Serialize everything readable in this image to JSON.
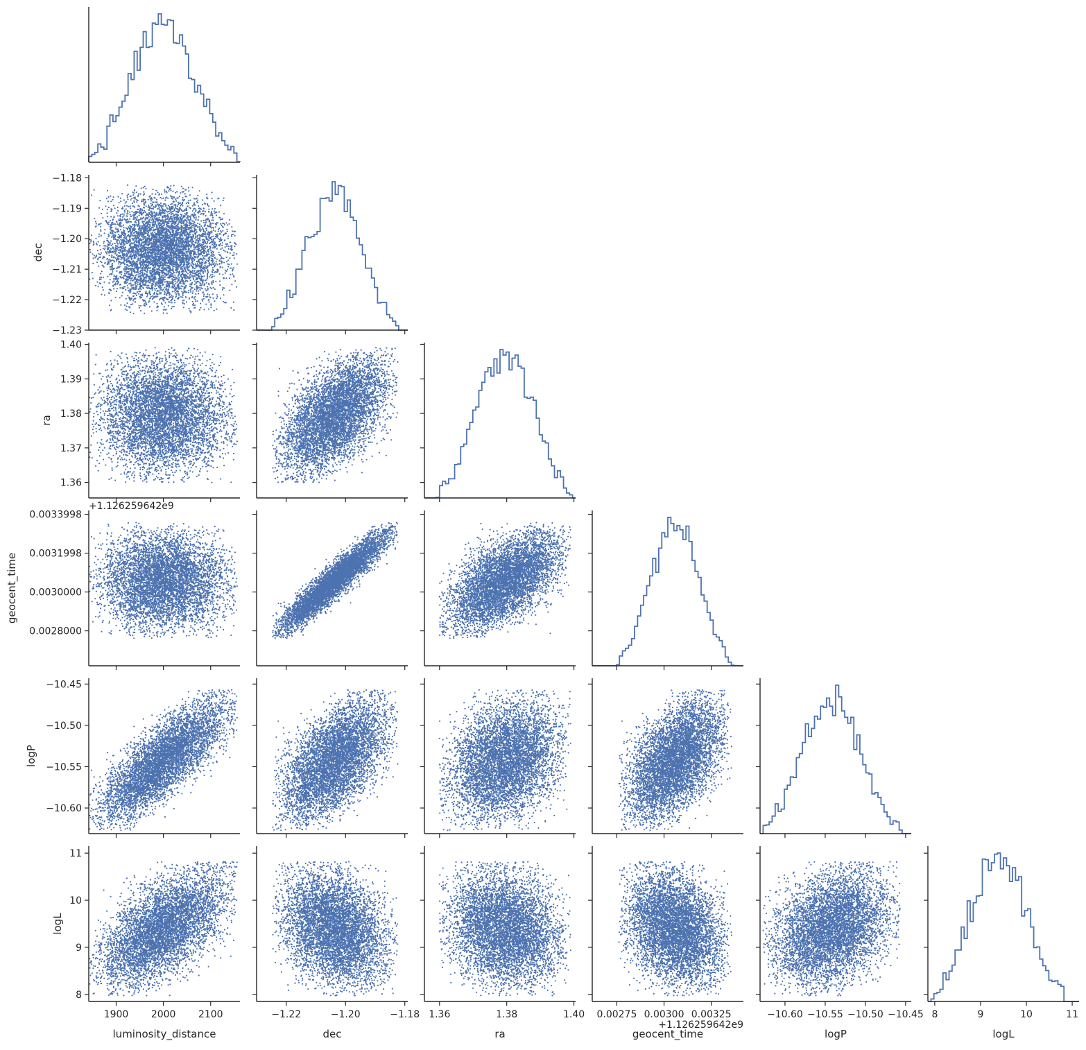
{
  "chart_data": {
    "type": "scatter",
    "kind": "pairplot-corner",
    "colors": {
      "marker": "#4c72b0",
      "axis": "#262626",
      "background": "#ffffff"
    },
    "variables": [
      {
        "name": "luminosity_distance",
        "mean": 2000,
        "sd": 68,
        "range": [
          1842,
          2162
        ],
        "ticks": [
          1900,
          2000,
          2100
        ],
        "tick_labels": [
          "1900",
          "2000",
          "2100"
        ]
      },
      {
        "name": "dec",
        "mean": -1.2035,
        "sd": 0.0092,
        "range": [
          -1.23,
          -1.179
        ],
        "ticks": [
          -1.23,
          -1.22,
          -1.21,
          -1.2,
          -1.19,
          -1.18
        ],
        "tick_labels": [
          "−1.23",
          "−1.22",
          "−1.21",
          "−1.20",
          "−1.19",
          "−1.18"
        ],
        "x_ticks": [
          -1.22,
          -1.2,
          -1.18
        ],
        "x_tick_labels": [
          "−1.22",
          "−1.20",
          "−1.18"
        ]
      },
      {
        "name": "ra",
        "mean": 1.3795,
        "sd": 0.0085,
        "range": [
          1.3555,
          1.4005
        ],
        "ticks": [
          1.36,
          1.37,
          1.38,
          1.39,
          1.4
        ],
        "tick_labels": [
          "1.36",
          "1.37",
          "1.38",
          "1.39",
          "1.40"
        ],
        "x_ticks": [
          1.36,
          1.38,
          1.4
        ],
        "x_tick_labels": [
          "1.36",
          "1.38",
          "1.40"
        ]
      },
      {
        "name": "geocent_time",
        "mean": 0.00306,
        "sd": 0.00013,
        "range": [
          0.00262,
          0.00342
        ],
        "offset": "+1.126259642e9",
        "offset_y": "+1.126259642e9",
        "offset_x": "+1.126259642e9",
        "ticks": [
          0.0028,
          0.003,
          0.0032,
          0.0034
        ],
        "tick_labels": [
          "0.0028000",
          "0.0030000",
          "0.0031998",
          "0.0033998"
        ],
        "x_ticks": [
          0.00275,
          0.003,
          0.00325
        ],
        "x_tick_labels": [
          "0.00275",
          "0.00300",
          "0.00325"
        ]
      },
      {
        "name": "logP",
        "mean": -10.542,
        "sd": 0.037,
        "range": [
          -10.631,
          -10.443
        ],
        "ticks": [
          -10.6,
          -10.55,
          -10.5,
          -10.45
        ],
        "tick_labels": [
          "−10.60",
          "−10.55",
          "−10.50",
          "−10.45"
        ]
      },
      {
        "name": "logL",
        "mean": 9.4,
        "sd": 0.62,
        "range": [
          7.85,
          11.15
        ],
        "ticks": [
          8,
          9,
          10,
          11
        ],
        "tick_labels": [
          "8",
          "9",
          "10",
          "11"
        ]
      }
    ],
    "correlations": [
      [
        1,
        0,
        0,
        0,
        0.78,
        0.6
      ],
      [
        0,
        1,
        0.58,
        0.94,
        0.55,
        -0.25
      ],
      [
        0,
        0.58,
        1,
        0.6,
        0.3,
        -0.15
      ],
      [
        0,
        0.94,
        0.6,
        1,
        0.5,
        -0.25
      ],
      [
        0.78,
        0.55,
        0.3,
        0.5,
        1,
        0.3
      ],
      [
        0.6,
        -0.25,
        -0.15,
        -0.25,
        0.3,
        1
      ]
    ],
    "n_samples": 6000,
    "diagonal": "step-histogram",
    "bins": 50,
    "corner": true,
    "grid": false
  }
}
